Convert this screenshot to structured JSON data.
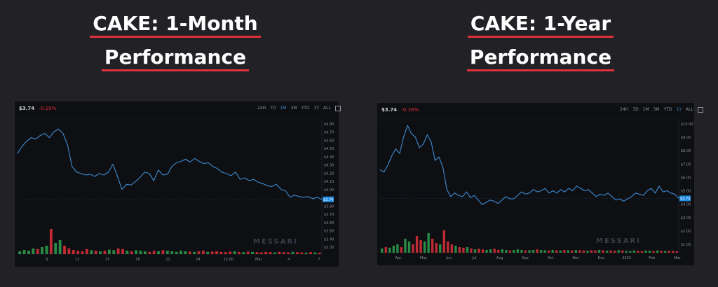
{
  "headings": {
    "left": {
      "line1": "CAKE: 1-Month",
      "line2": "Performance"
    },
    "right": {
      "line1": "CAKE: 1-Year",
      "line2": "Performance"
    }
  },
  "colors": {
    "line": "#3d8bd1",
    "up": "#2ea24f",
    "down": "#e0303a",
    "accent": "#e0303a"
  },
  "panels": {
    "left": {
      "price": "$3.74",
      "change": "-0.19%",
      "timeframes": [
        "24H",
        "7D",
        "1M",
        "3M",
        "YTD",
        "1Y",
        "ALL"
      ],
      "active": "1M",
      "watermark": "MESSARI",
      "price_tag": "$3.74"
    },
    "right": {
      "price": "$3.74",
      "change": "-0.16%",
      "timeframes": [
        "24H",
        "7D",
        "1M",
        "3M",
        "YTD",
        "1Y",
        "ALL"
      ],
      "active": "1Y",
      "watermark": "MESSARI",
      "price_tag": "$3.74"
    }
  },
  "chart_data": [
    {
      "type": "line",
      "title": "CAKE: 1-Month Performance",
      "x_ticks": [
        "9",
        "12",
        "15",
        "18",
        "21",
        "24",
        "12:00",
        "Mar",
        "4",
        "7"
      ],
      "y_ticks": [
        "$4.80",
        "$4.70",
        "$4.60",
        "$4.50",
        "$4.40",
        "$4.30",
        "$4.20",
        "$4.10",
        "$4.00",
        "$3.90",
        "$3.80",
        "$3.70",
        "$3.60",
        "$3.50",
        "$3.40",
        "$3.30"
      ],
      "ylim": [
        3.3,
        4.85
      ],
      "values": [
        4.38,
        4.48,
        4.55,
        4.6,
        4.58,
        4.63,
        4.66,
        4.6,
        4.68,
        4.72,
        4.66,
        4.5,
        4.2,
        4.12,
        4.1,
        4.08,
        4.09,
        4.06,
        4.1,
        4.08,
        4.12,
        4.23,
        4.06,
        3.88,
        3.95,
        3.94,
        3.99,
        4.05,
        4.12,
        4.1,
        4.0,
        4.15,
        4.08,
        4.09,
        4.2,
        4.25,
        4.27,
        4.3,
        4.26,
        4.31,
        4.27,
        4.24,
        4.25,
        4.2,
        4.17,
        4.12,
        4.1,
        4.07,
        4.12,
        4.02,
        4.04,
        4.0,
        4.02,
        3.98,
        3.96,
        3.93,
        3.92,
        3.95,
        3.88,
        3.86,
        3.77,
        3.8,
        3.78,
        3.77,
        3.78,
        3.75,
        3.77,
        3.74
      ],
      "volume": [
        0.1,
        0.15,
        0.12,
        0.2,
        0.18,
        0.25,
        0.3,
        0.9,
        0.4,
        0.5,
        0.3,
        0.2,
        0.15,
        0.12,
        0.1,
        0.18,
        0.14,
        0.12,
        0.1,
        0.12,
        0.16,
        0.14,
        0.2,
        0.18,
        0.12,
        0.1,
        0.14,
        0.12,
        0.1,
        0.08,
        0.12,
        0.1,
        0.14,
        0.12,
        0.1,
        0.08,
        0.12,
        0.1,
        0.09,
        0.08,
        0.1,
        0.12,
        0.08,
        0.09,
        0.1,
        0.08,
        0.07,
        0.09,
        0.1,
        0.08,
        0.07,
        0.09,
        0.08,
        0.07,
        0.06,
        0.08,
        0.07,
        0.06,
        0.08,
        0.07,
        0.06,
        0.08,
        0.07,
        0.06,
        0.05,
        0.07,
        0.06,
        0.05
      ]
    },
    {
      "type": "line",
      "title": "CAKE: 1-Year Performance",
      "x_ticks": [
        "Apr",
        "May",
        "Jun",
        "Jul",
        "Aug",
        "Sep",
        "Oct",
        "Nov",
        "Dec",
        "2023",
        "Feb",
        "Mar"
      ],
      "y_ticks": [
        "$10.00",
        "$9.00",
        "$8.00",
        "$7.00",
        "$6.00",
        "$5.00",
        "$4.00",
        "$3.00",
        "$2.00",
        "$1.00"
      ],
      "ylim": [
        1.0,
        10.5
      ],
      "values": [
        6.2,
        6.0,
        6.6,
        7.4,
        8.0,
        7.6,
        9.0,
        10.0,
        9.3,
        9.0,
        8.1,
        8.4,
        9.2,
        8.6,
        7.0,
        7.3,
        6.4,
        4.5,
        3.9,
        4.2,
        4.0,
        3.9,
        4.3,
        3.8,
        4.0,
        3.6,
        3.2,
        3.4,
        3.6,
        3.5,
        3.3,
        3.6,
        3.9,
        3.7,
        3.7,
        4.0,
        4.3,
        4.1,
        4.2,
        4.5,
        4.3,
        4.4,
        4.6,
        4.2,
        4.4,
        4.2,
        4.5,
        4.3,
        4.6,
        4.4,
        4.8,
        4.6,
        4.4,
        4.5,
        4.2,
        3.9,
        4.1,
        4.0,
        4.2,
        3.9,
        3.6,
        3.7,
        3.5,
        3.7,
        3.9,
        4.2,
        4.1,
        4.0,
        4.4,
        4.6,
        4.2,
        4.8,
        4.3,
        4.4,
        4.2,
        4.1,
        3.74
      ],
      "volume": [
        0.15,
        0.2,
        0.18,
        0.25,
        0.3,
        0.2,
        0.5,
        0.4,
        0.3,
        0.6,
        0.45,
        0.4,
        0.7,
        0.5,
        0.35,
        0.3,
        0.8,
        0.4,
        0.3,
        0.25,
        0.2,
        0.18,
        0.2,
        0.15,
        0.12,
        0.14,
        0.12,
        0.1,
        0.12,
        0.14,
        0.1,
        0.12,
        0.1,
        0.08,
        0.1,
        0.12,
        0.1,
        0.08,
        0.09,
        0.1,
        0.12,
        0.1,
        0.09,
        0.08,
        0.1,
        0.09,
        0.08,
        0.1,
        0.09,
        0.08,
        0.1,
        0.09,
        0.08,
        0.07,
        0.09,
        0.08,
        0.1,
        0.09,
        0.07,
        0.08,
        0.07,
        0.09,
        0.08,
        0.07,
        0.06,
        0.08,
        0.07,
        0.06,
        0.08,
        0.07,
        0.06,
        0.08,
        0.07,
        0.06,
        0.07,
        0.06,
        0.05
      ]
    }
  ]
}
